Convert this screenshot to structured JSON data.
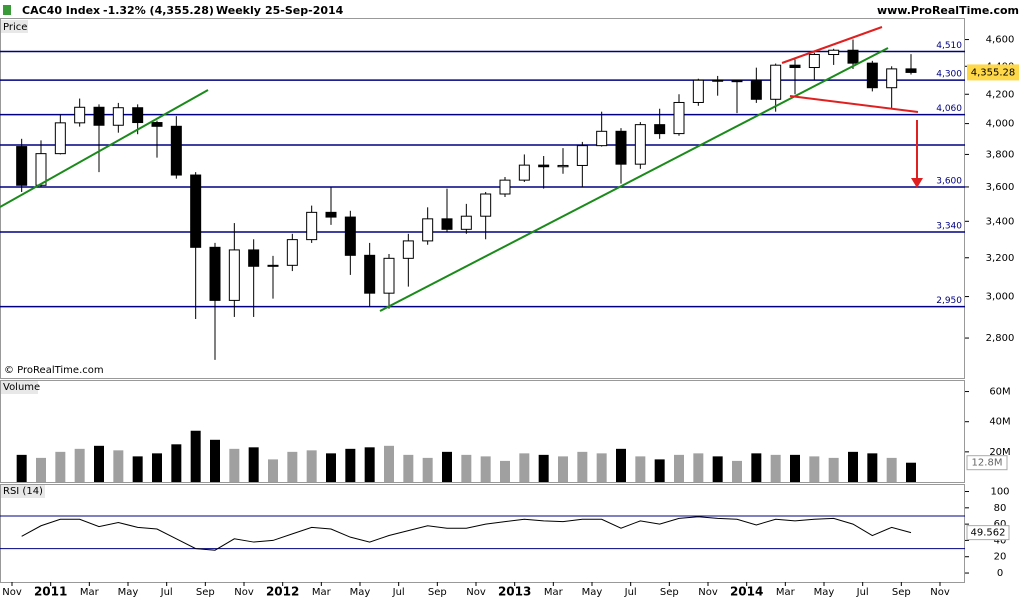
{
  "header": {
    "name": "CAC40 Index",
    "change": "-1.32% (4,355.28)",
    "period": "Weekly",
    "date": "25-Sep-2014",
    "site": "www.ProRealTime.com",
    "copyright": "© ProRealTime.com"
  },
  "x_axis": {
    "categories": [
      "Nov",
      "2011",
      "Mar",
      "May",
      "Jul",
      "Sep",
      "Nov",
      "2012",
      "Mar",
      "May",
      "Jul",
      "Sep",
      "Nov",
      "2013",
      "Mar",
      "May",
      "Jul",
      "Sep",
      "Nov",
      "2014",
      "Mar",
      "May",
      "Jul",
      "Sep",
      "Nov"
    ]
  },
  "chart_data": [
    {
      "type": "candlestick",
      "title": "Price",
      "log_scale": true,
      "x": [
        "2010-11",
        "2010-12",
        "2011-01",
        "2011-02",
        "2011-03",
        "2011-04",
        "2011-05",
        "2011-06",
        "2011-07",
        "2011-08",
        "2011-09",
        "2011-10",
        "2011-11",
        "2011-12",
        "2012-01",
        "2012-02",
        "2012-03",
        "2012-04",
        "2012-05",
        "2012-06",
        "2012-07",
        "2012-08",
        "2012-09",
        "2012-10",
        "2012-11",
        "2012-12",
        "2013-01",
        "2013-02",
        "2013-03",
        "2013-04",
        "2013-05",
        "2013-06",
        "2013-07",
        "2013-08",
        "2013-09",
        "2013-10",
        "2013-11",
        "2013-12",
        "2014-01",
        "2014-02",
        "2014-03",
        "2014-04",
        "2014-05",
        "2014-06",
        "2014-07",
        "2014-08",
        "2014-09"
      ],
      "open": [
        3850,
        3610,
        3805,
        4005,
        4110,
        3989,
        4107,
        4007,
        3982,
        3672,
        3256,
        2981,
        3242,
        3155,
        3160,
        3298,
        3451,
        3424,
        3213,
        3017,
        3197,
        3291,
        3414,
        3355,
        3429,
        3558,
        3641,
        3733,
        3723,
        3731,
        3856,
        3949,
        3739,
        3993,
        3934,
        4143,
        4299,
        4295,
        4296,
        4165,
        4408,
        4391,
        4487,
        4519,
        4423,
        4246,
        4381
      ],
      "high": [
        3900,
        3890,
        4060,
        4170,
        4130,
        4140,
        4130,
        4020,
        4050,
        3690,
        3280,
        3390,
        3300,
        3210,
        3330,
        3490,
        3600,
        3460,
        3280,
        3220,
        3330,
        3480,
        3590,
        3500,
        3570,
        3660,
        3800,
        3790,
        3840,
        3880,
        4080,
        3970,
        4010,
        4100,
        4200,
        4310,
        4330,
        4300,
        4390,
        4420,
        4450,
        4500,
        4530,
        4600,
        4440,
        4400,
        4490
      ],
      "low": [
        3570,
        3600,
        3800,
        3980,
        3690,
        3940,
        3930,
        3780,
        3650,
        2890,
        2700,
        2900,
        2900,
        2990,
        3130,
        3280,
        3380,
        3110,
        2950,
        2940,
        3050,
        3270,
        3340,
        3330,
        3300,
        3540,
        3630,
        3590,
        3680,
        3600,
        3850,
        3620,
        3710,
        3900,
        3920,
        4120,
        4190,
        4070,
        4140,
        4080,
        4200,
        4300,
        4410,
        4380,
        4220,
        4100,
        4340
      ],
      "close": [
        3610,
        3805,
        4005,
        4110,
        3989,
        4107,
        4007,
        3982,
        3672,
        3256,
        2981,
        3242,
        3155,
        3160,
        3298,
        3451,
        3424,
        3213,
        3017,
        3197,
        3291,
        3414,
        3355,
        3429,
        3558,
        3641,
        3733,
        3723,
        3731,
        3856,
        3949,
        3739,
        3993,
        3934,
        4143,
        4299,
        4295,
        4296,
        4165,
        4408,
        4391,
        4487,
        4519,
        4423,
        4246,
        4381,
        4355.28
      ],
      "value_labels": [
        null,
        null,
        null,
        null,
        null,
        null,
        null,
        null,
        null,
        null,
        null,
        null,
        null,
        null,
        null,
        null,
        null,
        null,
        null,
        null,
        null,
        null,
        null,
        null,
        null,
        null,
        null,
        null,
        null,
        null,
        null,
        null,
        null,
        null,
        null,
        null,
        null,
        null,
        null,
        null,
        null,
        null,
        null,
        null,
        null,
        null,
        "4,355.28"
      ],
      "up_color": "#ffffff",
      "down_color": "#000000",
      "tag_color": "#ffd84a",
      "ylim": [
        2620,
        4760
      ],
      "yticks": [
        {
          "value": 2800,
          "label": "2,800"
        },
        {
          "value": 3000,
          "label": "3,000"
        },
        {
          "value": 3200,
          "label": "3,200"
        },
        {
          "value": 3400,
          "label": "3,400"
        },
        {
          "value": 3600,
          "label": "3,600"
        },
        {
          "value": 3800,
          "label": "3,800"
        },
        {
          "value": 4000,
          "label": "4,000"
        },
        {
          "value": 4200,
          "label": "4,200"
        },
        {
          "value": 4400,
          "label": "4,400"
        },
        {
          "value": 4600,
          "label": "4,600"
        }
      ],
      "levels": [
        4510,
        4300,
        4060,
        3860,
        3600,
        3340,
        2950
      ],
      "level_labels": [
        "4,510",
        "4,300",
        "4,060",
        null,
        "3,600",
        "3,340",
        "2,950"
      ],
      "level_color": "#000080"
    },
    {
      "type": "bar",
      "title": "Volume",
      "values": [
        18,
        16,
        20,
        22,
        24,
        21,
        17,
        19,
        25,
        34,
        28,
        22,
        23,
        15,
        20,
        21,
        19,
        22,
        23,
        24,
        18,
        16,
        20,
        18,
        17,
        14,
        19,
        18,
        17,
        20,
        19,
        22,
        17,
        15,
        18,
        19,
        17,
        14,
        19,
        18,
        18,
        17,
        16,
        20,
        19,
        16,
        12.8
      ],
      "value_labels": [
        null,
        null,
        null,
        null,
        null,
        null,
        null,
        null,
        null,
        null,
        null,
        null,
        null,
        null,
        null,
        null,
        null,
        null,
        null,
        null,
        null,
        null,
        null,
        null,
        null,
        null,
        null,
        null,
        null,
        null,
        null,
        null,
        null,
        null,
        null,
        null,
        null,
        null,
        null,
        null,
        null,
        null,
        null,
        null,
        null,
        null,
        "12.8M"
      ],
      "ylim": [
        0,
        67
      ],
      "yticks": [
        {
          "value": 20,
          "label": "20M"
        },
        {
          "value": 40,
          "label": "40M"
        },
        {
          "value": 60,
          "label": "60M"
        }
      ],
      "up_color": "#a0a0a0",
      "down_color": "#000000"
    },
    {
      "type": "line",
      "title": "RSI (14)",
      "values": [
        45,
        58,
        66,
        66,
        57,
        62,
        56,
        54,
        42,
        30,
        28,
        42,
        38,
        40,
        48,
        56,
        54,
        44,
        38,
        46,
        52,
        58,
        55,
        55,
        60,
        63,
        66,
        64,
        63,
        66,
        66,
        55,
        64,
        60,
        67,
        69,
        67,
        66,
        59,
        66,
        64,
        66,
        67,
        60,
        46,
        56,
        49.562
      ],
      "ylim": [
        -11,
        108
      ],
      "yticks": [
        0,
        20,
        40,
        60,
        80,
        100
      ],
      "levels": [
        70,
        30
      ],
      "color": "#000000"
    }
  ]
}
